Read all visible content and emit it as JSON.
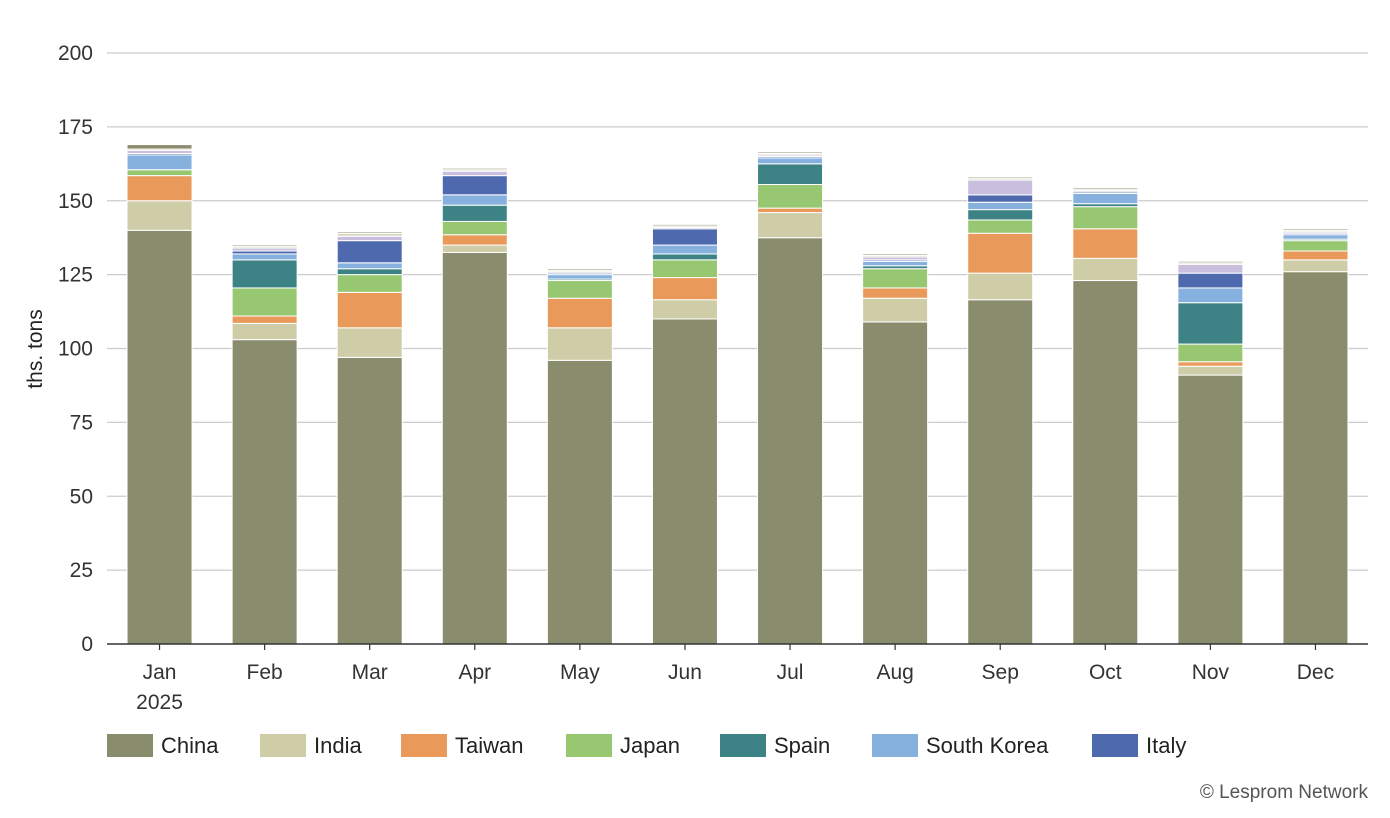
{
  "chart_data": {
    "type": "bar",
    "stacked": true,
    "categories": [
      "Jan",
      "Feb",
      "Mar",
      "Apr",
      "May",
      "Jun",
      "Jul",
      "Aug",
      "Sep",
      "Oct",
      "Nov",
      "Dec"
    ],
    "category_year_label": "2025",
    "ylabel": "ths. tons",
    "xlabel": "",
    "ylim": [
      0,
      200
    ],
    "yticks": [
      0,
      25,
      50,
      75,
      100,
      125,
      150,
      175,
      200
    ],
    "grid": true,
    "legend_position": "bottom-left",
    "legend": [
      "China",
      "India",
      "Taiwan",
      "Japan",
      "Spain",
      "South Korea",
      "Italy"
    ],
    "series": [
      {
        "name": "China",
        "color": "#8a8c6e",
        "values": [
          140,
          103,
          97,
          132.5,
          96,
          110,
          137.5,
          109,
          116.5,
          123,
          91,
          126
        ]
      },
      {
        "name": "India",
        "color": "#cfcda8",
        "values": [
          10,
          5.5,
          10,
          2.5,
          11,
          6.5,
          8.5,
          8,
          9,
          7.5,
          3,
          4
        ]
      },
      {
        "name": "Taiwan",
        "color": "#e99a5a",
        "values": [
          8.5,
          2.5,
          12,
          3.5,
          10,
          7.5,
          1.5,
          3.5,
          13.5,
          10,
          1.5,
          3
        ]
      },
      {
        "name": "Japan",
        "color": "#98c771",
        "values": [
          2,
          9.5,
          6,
          4.5,
          6,
          6,
          8,
          6.5,
          4.5,
          7.5,
          6,
          3.5
        ]
      },
      {
        "name": "Spain",
        "color": "#3d8386",
        "values": [
          0,
          9.5,
          2,
          5.5,
          0.5,
          2,
          7,
          1,
          3.5,
          1,
          14,
          0.5
        ]
      },
      {
        "name": "South Korea",
        "color": "#86b0de",
        "values": [
          5,
          2,
          2,
          3.5,
          1.5,
          3,
          2,
          1.5,
          2.5,
          3.5,
          5,
          1.5
        ]
      },
      {
        "name": "Italy",
        "color": "#4e69ad",
        "values": [
          0.5,
          1,
          7.5,
          6.5,
          0.5,
          5.5,
          0.5,
          0.5,
          2.5,
          0.5,
          5,
          0.5
        ]
      },
      {
        "name": "",
        "color": "#c9bedd",
        "values": [
          1,
          1,
          1.5,
          1.5,
          0.5,
          0.5,
          0.5,
          1,
          5,
          0.5,
          3,
          0.5
        ]
      },
      {
        "name": "",
        "color": "#d8d6c2",
        "values": [
          0.5,
          0.5,
          1,
          0.5,
          0.5,
          0.5,
          0.5,
          0.5,
          0.5,
          0.5,
          0.5,
          0.5
        ]
      },
      {
        "name": "",
        "color": "#8a8c6e",
        "values": [
          1.5,
          0.5,
          0.5,
          0.5,
          0.5,
          0.5,
          0.5,
          0.5,
          0.5,
          0.5,
          0.5,
          0.5
        ]
      }
    ]
  },
  "credit": "© Lesprom Network"
}
